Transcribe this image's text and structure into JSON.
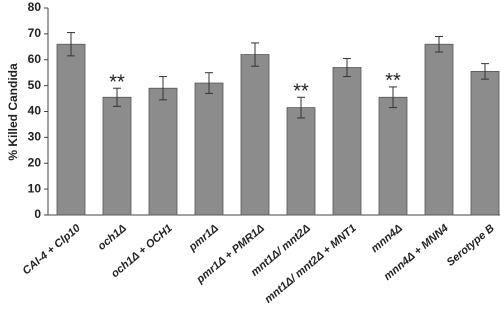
{
  "chart_data": {
    "type": "bar",
    "y_label": "% Killed Candida",
    "categories": [
      "CAI-4 + Clp10",
      "och1Δ",
      "och1Δ + OCH1",
      "pmr1Δ",
      "pmr1Δ + PMR1Δ",
      "mnt1Δ/ mnt2Δ",
      "mnt1Δ/ mnt2Δ + MNT1",
      "mnn4Δ",
      "mnn4Δ + MNN4",
      "Serotype B"
    ],
    "values": [
      66,
      45.5,
      49,
      51,
      62,
      41.5,
      57,
      45.5,
      66,
      55.5
    ],
    "errors": [
      4.5,
      3.5,
      4.5,
      4,
      4.5,
      4,
      3.5,
      4,
      3,
      3
    ],
    "significance": [
      null,
      "**",
      null,
      null,
      null,
      "**",
      null,
      "**",
      null,
      null
    ],
    "color": "#8c8c8c",
    "ylim": [
      0,
      80
    ],
    "yticks": [
      0,
      10,
      20,
      30,
      40,
      50,
      60,
      70,
      80
    ],
    "grid": false
  }
}
